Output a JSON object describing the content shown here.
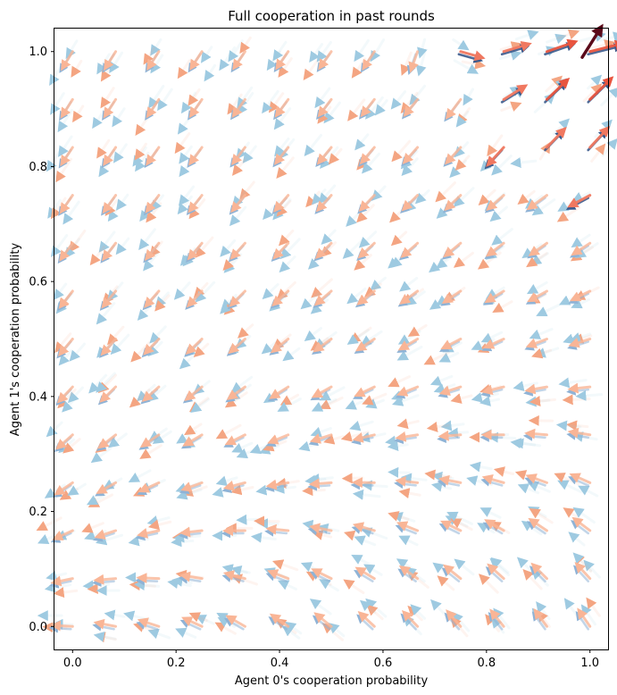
{
  "chart_data": {
    "type": "quiver",
    "title": "Full cooperation in past rounds",
    "xlabel": "Agent 0's cooperation probability",
    "ylabel": "Agent 1's cooperation probability",
    "xlim": [
      -0.035,
      1.035
    ],
    "ylim": [
      -0.04,
      1.04
    ],
    "x_ticks": [
      0.0,
      0.2,
      0.4,
      0.6,
      0.8,
      1.0
    ],
    "x_tick_labels": [
      "0.0",
      "0.2",
      "0.4",
      "0.6",
      "0.8",
      "1.0"
    ],
    "y_ticks": [
      0.0,
      0.2,
      0.4,
      0.6,
      0.8,
      1.0
    ],
    "y_tick_labels": [
      "0.0",
      "0.2",
      "0.4",
      "0.6",
      "0.8",
      "1.0"
    ],
    "grid": false,
    "grid_x": [
      0.0,
      0.0833,
      0.1667,
      0.25,
      0.3333,
      0.4167,
      0.5,
      0.5833,
      0.6667,
      0.75,
      0.8333,
      0.9167,
      1.0
    ],
    "grid_y": [
      0.0,
      0.0833,
      0.1667,
      0.25,
      0.3333,
      0.4167,
      0.5,
      0.5833,
      0.6667,
      0.75,
      0.8333,
      0.9167,
      1.0
    ],
    "description_of_field": "Dense quiver fields (blue and red) of learning dynamics; arrows point toward low cooperation except near the top-right corner where they point toward full cooperation.",
    "colors": {
      "red_field": "#e8553f",
      "blue_field": "#3b5a8c",
      "corner": "#5a0a1a"
    }
  }
}
